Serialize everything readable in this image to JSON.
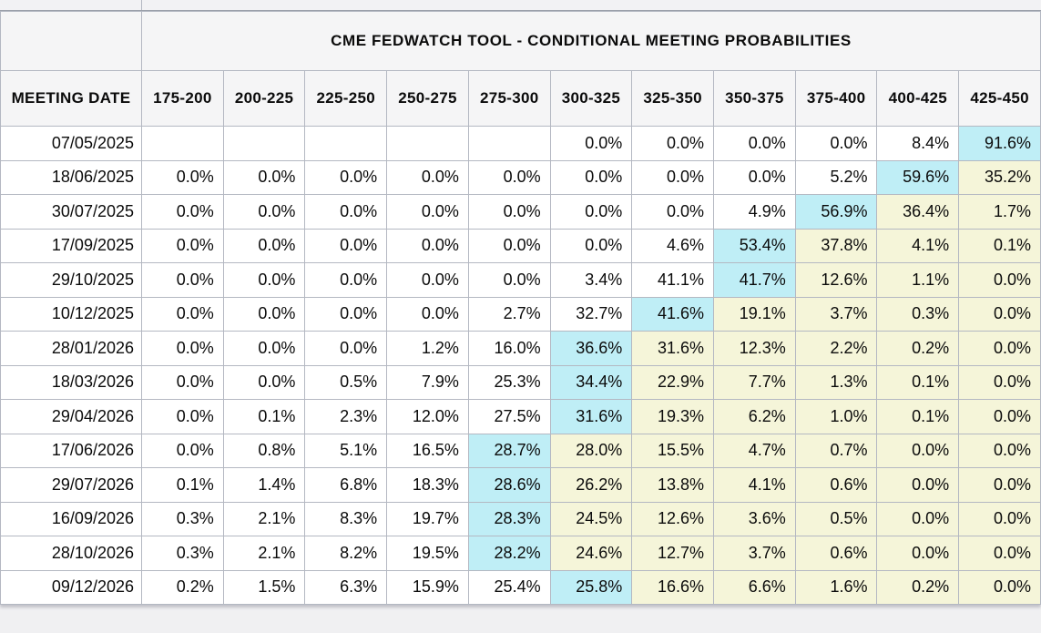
{
  "title": "CME FEDWATCH TOOL - CONDITIONAL MEETING PROBABILITIES",
  "colors": {
    "page_background": "#f0f0f2",
    "header_background": "#f5f5f6",
    "cell_background": "#ffffff",
    "grid_border": "#b4b8c2",
    "modal_cell_highlight": "#bfeef6",
    "right_of_modal_highlight": "#f5f5d9",
    "text": "#0b0b0b"
  },
  "table": {
    "date_column_header": "MEETING DATE",
    "rate_columns": [
      "175-200",
      "200-225",
      "225-250",
      "250-275",
      "275-300",
      "300-325",
      "325-350",
      "350-375",
      "375-400",
      "400-425",
      "425-450"
    ],
    "highlight_legend": {
      "cyan": "modal (highest) probability cell",
      "yellow": "cells right of modal cell"
    },
    "rows": [
      {
        "date": "07/05/2025",
        "modal_col": 10,
        "values": [
          "",
          "",
          "",
          "",
          "",
          "0.0%",
          "0.0%",
          "0.0%",
          "0.0%",
          "8.4%",
          "91.6%"
        ]
      },
      {
        "date": "18/06/2025",
        "modal_col": 9,
        "values": [
          "0.0%",
          "0.0%",
          "0.0%",
          "0.0%",
          "0.0%",
          "0.0%",
          "0.0%",
          "0.0%",
          "5.2%",
          "59.6%",
          "35.2%"
        ]
      },
      {
        "date": "30/07/2025",
        "modal_col": 8,
        "values": [
          "0.0%",
          "0.0%",
          "0.0%",
          "0.0%",
          "0.0%",
          "0.0%",
          "0.0%",
          "4.9%",
          "56.9%",
          "36.4%",
          "1.7%"
        ]
      },
      {
        "date": "17/09/2025",
        "modal_col": 7,
        "values": [
          "0.0%",
          "0.0%",
          "0.0%",
          "0.0%",
          "0.0%",
          "0.0%",
          "4.6%",
          "53.4%",
          "37.8%",
          "4.1%",
          "0.1%"
        ]
      },
      {
        "date": "29/10/2025",
        "modal_col": 7,
        "values": [
          "0.0%",
          "0.0%",
          "0.0%",
          "0.0%",
          "0.0%",
          "3.4%",
          "41.1%",
          "41.7%",
          "12.6%",
          "1.1%",
          "0.0%"
        ]
      },
      {
        "date": "10/12/2025",
        "modal_col": 6,
        "values": [
          "0.0%",
          "0.0%",
          "0.0%",
          "0.0%",
          "2.7%",
          "32.7%",
          "41.6%",
          "19.1%",
          "3.7%",
          "0.3%",
          "0.0%"
        ]
      },
      {
        "date": "28/01/2026",
        "modal_col": 5,
        "values": [
          "0.0%",
          "0.0%",
          "0.0%",
          "1.2%",
          "16.0%",
          "36.6%",
          "31.6%",
          "12.3%",
          "2.2%",
          "0.2%",
          "0.0%"
        ]
      },
      {
        "date": "18/03/2026",
        "modal_col": 5,
        "values": [
          "0.0%",
          "0.0%",
          "0.5%",
          "7.9%",
          "25.3%",
          "34.4%",
          "22.9%",
          "7.7%",
          "1.3%",
          "0.1%",
          "0.0%"
        ]
      },
      {
        "date": "29/04/2026",
        "modal_col": 5,
        "values": [
          "0.0%",
          "0.1%",
          "2.3%",
          "12.0%",
          "27.5%",
          "31.6%",
          "19.3%",
          "6.2%",
          "1.0%",
          "0.1%",
          "0.0%"
        ]
      },
      {
        "date": "17/06/2026",
        "modal_col": 4,
        "values": [
          "0.0%",
          "0.8%",
          "5.1%",
          "16.5%",
          "28.7%",
          "28.0%",
          "15.5%",
          "4.7%",
          "0.7%",
          "0.0%",
          "0.0%"
        ]
      },
      {
        "date": "29/07/2026",
        "modal_col": 4,
        "values": [
          "0.1%",
          "1.4%",
          "6.8%",
          "18.3%",
          "28.6%",
          "26.2%",
          "13.8%",
          "4.1%",
          "0.6%",
          "0.0%",
          "0.0%"
        ]
      },
      {
        "date": "16/09/2026",
        "modal_col": 4,
        "values": [
          "0.3%",
          "2.1%",
          "8.3%",
          "19.7%",
          "28.3%",
          "24.5%",
          "12.6%",
          "3.6%",
          "0.5%",
          "0.0%",
          "0.0%"
        ]
      },
      {
        "date": "28/10/2026",
        "modal_col": 4,
        "values": [
          "0.3%",
          "2.1%",
          "8.2%",
          "19.5%",
          "28.2%",
          "24.6%",
          "12.7%",
          "3.7%",
          "0.6%",
          "0.0%",
          "0.0%"
        ]
      },
      {
        "date": "09/12/2026",
        "modal_col": 5,
        "values": [
          "0.2%",
          "1.5%",
          "6.3%",
          "15.9%",
          "25.4%",
          "25.8%",
          "16.6%",
          "6.6%",
          "1.6%",
          "0.2%",
          "0.0%"
        ]
      }
    ]
  }
}
